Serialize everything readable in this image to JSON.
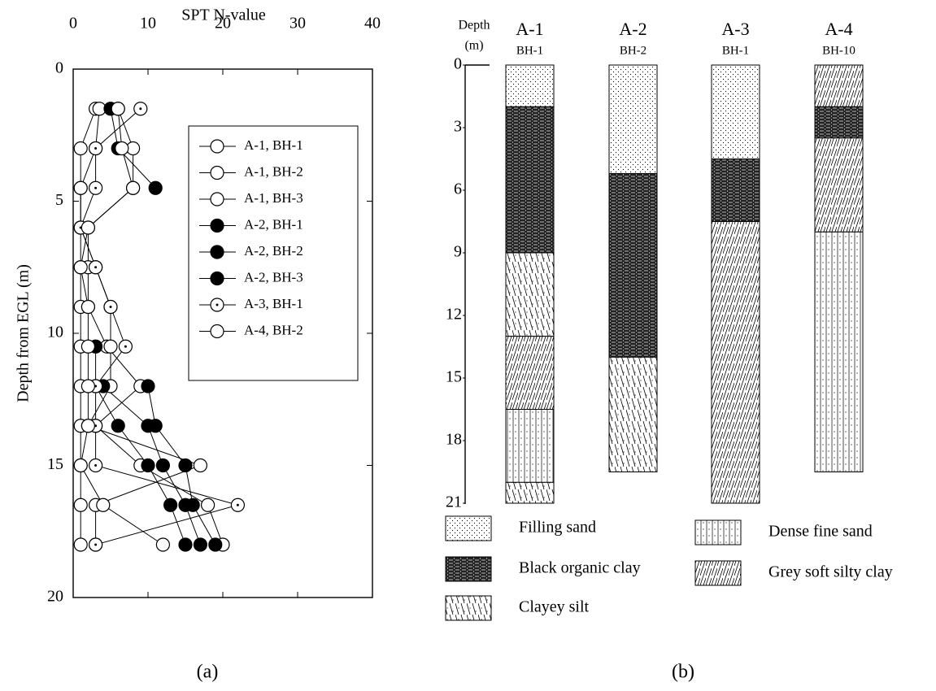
{
  "chart_data": [
    {
      "type": "line",
      "xlabel": "SPT N-value",
      "ylabel": "Depth from EGL (m)",
      "panel": "(a)",
      "xlim": [
        0,
        40
      ],
      "xticks": [
        0,
        10,
        20,
        30,
        40
      ],
      "ylim": [
        0,
        20
      ],
      "yticks": [
        0,
        5,
        10,
        15,
        20
      ],
      "depths": [
        1.5,
        3,
        4.5,
        6,
        7.5,
        9,
        10.5,
        12,
        13.5,
        15,
        16.5,
        18
      ],
      "series": [
        {
          "name": "A-1, BH-1",
          "marker": "open",
          "values": [
            3,
            1,
            1,
            1,
            1,
            1,
            1,
            1,
            1,
            1,
            1,
            1
          ]
        },
        {
          "name": "A-1, BH-2",
          "marker": "open",
          "values": [
            6,
            8,
            8,
            2,
            2,
            2,
            4.5,
            9,
            3,
            9,
            18,
            20
          ]
        },
        {
          "name": "A-1, BH-3",
          "marker": "open",
          "values": [
            3.5,
            3,
            1,
            1,
            3,
            5,
            5,
            5,
            2,
            17,
            3,
            3
          ]
        },
        {
          "name": "A-2, BH-1",
          "marker": "filled",
          "values": [
            5,
            6,
            11,
            null,
            null,
            null,
            3,
            3,
            6,
            10,
            13,
            15
          ]
        },
        {
          "name": "A-2, BH-2",
          "marker": "filled",
          "values": [
            null,
            null,
            null,
            null,
            null,
            null,
            null,
            4,
            10,
            12,
            15,
            17
          ]
        },
        {
          "name": "A-2, BH-3",
          "marker": "filled",
          "values": [
            null,
            null,
            null,
            null,
            null,
            null,
            null,
            10,
            11,
            15,
            16,
            19
          ]
        },
        {
          "name": "A-3, BH-1",
          "marker": "dotted",
          "values": [
            9,
            3,
            3,
            1,
            3,
            5,
            7,
            3,
            3,
            3,
            22,
            3
          ]
        },
        {
          "name": "A-4, BH-2",
          "marker": "open",
          "values": [
            6,
            6.5,
            8,
            2,
            1,
            2,
            2,
            2,
            2,
            1,
            4,
            12
          ]
        }
      ]
    },
    {
      "type": "borehole",
      "axis_title": "Depth",
      "axis_unit": "(m)",
      "panel": "(b)",
      "ylim": [
        0,
        21
      ],
      "yticks": [
        0,
        3,
        6,
        9,
        12,
        15,
        18,
        21
      ],
      "soils": [
        {
          "name": "Filling sand",
          "pattern": "dots"
        },
        {
          "name": "Black organic clay",
          "pattern": "organic"
        },
        {
          "name": "Clayey silt",
          "pattern": "silt"
        },
        {
          "name": "Dense fine sand",
          "pattern": "dense"
        },
        {
          "name": "Grey soft silty clay",
          "pattern": "hatch"
        }
      ],
      "columns": [
        {
          "name": "A-1",
          "hole": "BH-1",
          "layers": [
            {
              "soil": 0,
              "top": 0,
              "bottom": 2
            },
            {
              "soil": 1,
              "top": 2,
              "bottom": 9
            },
            {
              "soil": 2,
              "top": 9,
              "bottom": 13
            },
            {
              "soil": 4,
              "top": 13,
              "bottom": 16.5
            },
            {
              "soil": 3,
              "top": 16.5,
              "bottom": 20
            },
            {
              "soil": 2,
              "top": 20,
              "bottom": 21
            }
          ]
        },
        {
          "name": "A-2",
          "hole": "BH-2",
          "layers": [
            {
              "soil": 0,
              "top": 0,
              "bottom": 5.2
            },
            {
              "soil": 1,
              "top": 5.2,
              "bottom": 14
            },
            {
              "soil": 2,
              "top": 14,
              "bottom": 19.5
            }
          ]
        },
        {
          "name": "A-3",
          "hole": "BH-1",
          "layers": [
            {
              "soil": 0,
              "top": 0,
              "bottom": 4.5
            },
            {
              "soil": 1,
              "top": 4.5,
              "bottom": 7.5
            },
            {
              "soil": 4,
              "top": 7.5,
              "bottom": 21
            }
          ]
        },
        {
          "name": "A-4",
          "hole": "BH-10",
          "layers": [
            {
              "soil": 4,
              "top": 0,
              "bottom": 2
            },
            {
              "soil": 1,
              "top": 2,
              "bottom": 3.5
            },
            {
              "soil": 4,
              "top": 3.5,
              "bottom": 8
            },
            {
              "soil": 3,
              "top": 8,
              "bottom": 19.5
            }
          ]
        }
      ]
    }
  ]
}
